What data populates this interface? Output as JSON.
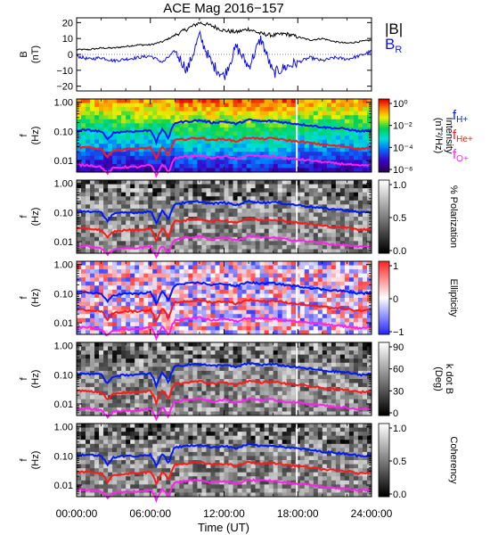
{
  "colors": {
    "magnitude": "#000000",
    "radial": "#1010e0",
    "h_line": "#0018ff",
    "he_line": "#ff1a1a",
    "o_line": "#ff22ee"
  },
  "chart_data": [
    {
      "type": "line",
      "title": "ACE Mag 2016−157",
      "ylabel": "B",
      "yunit": "(nT)",
      "ylim": [
        -23,
        23
      ],
      "yticks": [
        "20",
        "10",
        "0",
        "−10",
        "−20"
      ],
      "ytick_values": [
        20,
        10,
        0,
        -10,
        -20
      ],
      "legend": {
        "placement": "right",
        "entries": [
          {
            "label": "|B|",
            "color": "#000000"
          },
          {
            "label": "B",
            "sub": "R",
            "color": "#1010e0"
          }
        ]
      },
      "x": [
        0,
        1,
        2,
        3,
        4,
        5,
        6,
        7,
        8,
        9,
        10,
        11,
        12,
        13,
        14,
        15,
        16,
        17,
        18,
        19,
        20,
        21,
        22,
        23,
        24
      ],
      "series": [
        {
          "name": "|B|",
          "values": [
            3,
            3,
            4,
            4,
            5,
            6,
            6,
            8,
            12,
            16,
            20,
            18,
            15,
            14,
            16,
            13,
            12,
            13,
            11,
            9,
            10,
            8,
            7,
            8,
            9
          ]
        },
        {
          "name": "B_R",
          "values": [
            -1,
            -3,
            -2,
            -4,
            -3,
            -2,
            -1,
            -5,
            2,
            -10,
            12,
            -6,
            -14,
            5,
            -8,
            10,
            -12,
            -8,
            -5,
            -2,
            -4,
            -2,
            -3,
            -1,
            2
          ]
        }
      ]
    },
    {
      "type": "heatmap",
      "ylabel": "f",
      "yunit": "(Hz)",
      "ylim": [
        0.004,
        1.3
      ],
      "yscale": "log",
      "yticks": [
        "1.00",
        "0.10",
        "0.01"
      ],
      "ytick_values": [
        1,
        0.1,
        0.01
      ],
      "colorbar": {
        "label": "Intensity",
        "unit": "(nT²/Hz)",
        "ticks": [
          "10⁰",
          "10⁻²",
          "10⁻⁴",
          "10⁻⁶"
        ],
        "tick_values": [
          1,
          0.01,
          0.0001,
          1e-06
        ],
        "palette": "rainbow"
      },
      "legend": {
        "placement": "right",
        "entries": [
          {
            "label": "f",
            "sub": "H+",
            "color": "#0018ff"
          },
          {
            "label": "f",
            "sub": "He+",
            "color": "#ff1a1a"
          },
          {
            "label": "f",
            "sub": "O+",
            "color": "#ff22ee"
          }
        ]
      }
    },
    {
      "type": "heatmap",
      "ylabel": "f",
      "yunit": "(Hz)",
      "yscale": "log",
      "yticks": [
        "1.00",
        "0.10",
        "0.01"
      ],
      "ytick_values": [
        1,
        0.1,
        0.01
      ],
      "colorbar": {
        "label": "% Polarization",
        "unit": "",
        "ticks": [
          "1.0",
          "0.5",
          "0.0"
        ],
        "tick_values": [
          1,
          0.5,
          0
        ],
        "palette": "gray"
      }
    },
    {
      "type": "heatmap",
      "ylabel": "f",
      "yunit": "(Hz)",
      "yscale": "log",
      "yticks": [
        "1.00",
        "0.10",
        "0.01"
      ],
      "ytick_values": [
        1,
        0.1,
        0.01
      ],
      "colorbar": {
        "label": "Ellipticity",
        "unit": "",
        "ticks": [
          "1",
          "0",
          "−1"
        ],
        "tick_values": [
          1,
          0,
          -1
        ],
        "palette": "bwr"
      }
    },
    {
      "type": "heatmap",
      "ylabel": "f",
      "yunit": "(Hz)",
      "yscale": "log",
      "yticks": [
        "1.00",
        "0.10",
        "0.01"
      ],
      "ytick_values": [
        1,
        0.1,
        0.01
      ],
      "colorbar": {
        "label": "k dot B",
        "unit": "(Deg)",
        "ticks": [
          "90",
          "60",
          "30",
          "0"
        ],
        "tick_values": [
          90,
          60,
          30,
          0
        ],
        "palette": "gray"
      }
    },
    {
      "type": "heatmap",
      "ylabel": "f",
      "yunit": "(Hz)",
      "yscale": "log",
      "yticks": [
        "1.00",
        "0.10",
        "0.01"
      ],
      "ytick_values": [
        1,
        0.1,
        0.01
      ],
      "colorbar": {
        "label": "Coherency",
        "unit": "",
        "ticks": [
          "1.0",
          "0.5",
          "0.0"
        ],
        "tick_values": [
          1,
          0.5,
          0
        ],
        "palette": "gray"
      }
    }
  ],
  "shared_time_axis": {
    "xlabel": "Time (UT)",
    "xlim": [
      0,
      24
    ],
    "xticks": [
      "00:00:00",
      "06:00:00",
      "12:00:00",
      "18:00:00",
      "24:00:00"
    ],
    "xtick_values": [
      0,
      6,
      12,
      18,
      24
    ]
  },
  "ion_cyclotron_frequencies": {
    "x": [
      0,
      1,
      2,
      2.5,
      3,
      4,
      5,
      6,
      6.5,
      7,
      7.5,
      8,
      9,
      10,
      11,
      12,
      13,
      14,
      15,
      16,
      17,
      18,
      19,
      20,
      21,
      22,
      23,
      24
    ],
    "f_H": [
      0.11,
      0.11,
      0.1,
      0.05,
      0.09,
      0.1,
      0.1,
      0.11,
      0.04,
      0.12,
      0.05,
      0.2,
      0.22,
      0.24,
      0.2,
      0.22,
      0.18,
      0.25,
      0.22,
      0.23,
      0.2,
      0.18,
      0.16,
      0.14,
      0.13,
      0.12,
      0.1,
      0.11
    ],
    "f_He": [
      0.028,
      0.028,
      0.025,
      0.013,
      0.022,
      0.025,
      0.025,
      0.028,
      0.01,
      0.03,
      0.013,
      0.05,
      0.055,
      0.06,
      0.05,
      0.055,
      0.045,
      0.062,
      0.055,
      0.058,
      0.05,
      0.045,
      0.04,
      0.035,
      0.032,
      0.03,
      0.025,
      0.028
    ],
    "f_O": [
      0.007,
      0.007,
      0.006,
      0.0035,
      0.0055,
      0.006,
      0.006,
      0.007,
      0.0028,
      0.0075,
      0.0035,
      0.012,
      0.014,
      0.015,
      0.012,
      0.014,
      0.011,
      0.015,
      0.014,
      0.014,
      0.012,
      0.011,
      0.01,
      0.009,
      0.008,
      0.0075,
      0.0065,
      0.007
    ]
  }
}
